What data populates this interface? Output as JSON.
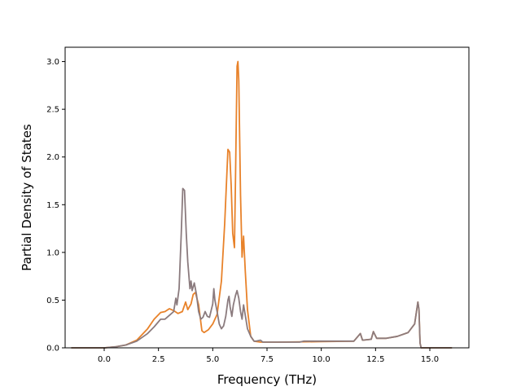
{
  "chart_data": {
    "type": "line",
    "title": "",
    "xlabel": "Frequency (THz)",
    "ylabel": "Partial Density of States",
    "xlim": [
      -1.8,
      16.8
    ],
    "ylim": [
      0.0,
      3.15
    ],
    "xticks": [
      0.0,
      2.5,
      5.0,
      7.5,
      10.0,
      12.5,
      15.0
    ],
    "xtick_labels": [
      "0.0",
      "2.5",
      "5.0",
      "7.5",
      "10.0",
      "12.5",
      "15.0"
    ],
    "yticks": [
      0.0,
      0.5,
      1.0,
      1.5,
      2.0,
      2.5,
      3.0
    ],
    "ytick_labels": [
      "0.0",
      "0.5",
      "1.0",
      "1.5",
      "2.0",
      "2.5",
      "3.0"
    ],
    "grid": false,
    "legend": "none",
    "series": [
      {
        "color": "#e8822a",
        "points": [
          [
            -1.5,
            0.0
          ],
          [
            0.0,
            0.0
          ],
          [
            0.5,
            0.01
          ],
          [
            1.0,
            0.03
          ],
          [
            1.5,
            0.08
          ],
          [
            2.0,
            0.2
          ],
          [
            2.3,
            0.3
          ],
          [
            2.6,
            0.37
          ],
          [
            2.8,
            0.38
          ],
          [
            3.0,
            0.41
          ],
          [
            3.2,
            0.39
          ],
          [
            3.4,
            0.36
          ],
          [
            3.6,
            0.38
          ],
          [
            3.75,
            0.48
          ],
          [
            3.85,
            0.4
          ],
          [
            4.0,
            0.46
          ],
          [
            4.1,
            0.56
          ],
          [
            4.2,
            0.58
          ],
          [
            4.35,
            0.45
          ],
          [
            4.5,
            0.18
          ],
          [
            4.6,
            0.16
          ],
          [
            4.8,
            0.19
          ],
          [
            5.0,
            0.25
          ],
          [
            5.2,
            0.35
          ],
          [
            5.4,
            0.7
          ],
          [
            5.55,
            1.3
          ],
          [
            5.7,
            2.08
          ],
          [
            5.78,
            2.05
          ],
          [
            5.85,
            1.7
          ],
          [
            5.92,
            1.2
          ],
          [
            6.0,
            1.05
          ],
          [
            6.05,
            1.8
          ],
          [
            6.12,
            2.95
          ],
          [
            6.16,
            3.0
          ],
          [
            6.2,
            2.8
          ],
          [
            6.28,
            1.6
          ],
          [
            6.35,
            0.95
          ],
          [
            6.42,
            1.17
          ],
          [
            6.5,
            0.8
          ],
          [
            6.6,
            0.4
          ],
          [
            6.75,
            0.12
          ],
          [
            6.9,
            0.07
          ],
          [
            7.2,
            0.06
          ],
          [
            8.0,
            0.06
          ],
          [
            10.0,
            0.065
          ],
          [
            11.5,
            0.07
          ],
          [
            11.8,
            0.15
          ],
          [
            11.9,
            0.08
          ],
          [
            12.3,
            0.09
          ],
          [
            12.4,
            0.17
          ],
          [
            12.55,
            0.1
          ],
          [
            13.0,
            0.1
          ],
          [
            13.5,
            0.12
          ],
          [
            14.0,
            0.16
          ],
          [
            14.3,
            0.25
          ],
          [
            14.45,
            0.48
          ],
          [
            14.5,
            0.4
          ],
          [
            14.55,
            0.05
          ],
          [
            14.6,
            0.0
          ],
          [
            16.0,
            0.0
          ]
        ]
      },
      {
        "color": "#8b7b7e",
        "points": [
          [
            -1.5,
            0.0
          ],
          [
            0.0,
            0.0
          ],
          [
            0.5,
            0.01
          ],
          [
            1.0,
            0.03
          ],
          [
            1.5,
            0.07
          ],
          [
            2.0,
            0.15
          ],
          [
            2.3,
            0.22
          ],
          [
            2.6,
            0.3
          ],
          [
            2.8,
            0.3
          ],
          [
            3.0,
            0.34
          ],
          [
            3.2,
            0.38
          ],
          [
            3.3,
            0.52
          ],
          [
            3.35,
            0.45
          ],
          [
            3.45,
            0.62
          ],
          [
            3.55,
            1.2
          ],
          [
            3.62,
            1.67
          ],
          [
            3.7,
            1.65
          ],
          [
            3.78,
            1.2
          ],
          [
            3.85,
            0.9
          ],
          [
            3.95,
            0.62
          ],
          [
            4.0,
            0.7
          ],
          [
            4.05,
            0.6
          ],
          [
            4.15,
            0.68
          ],
          [
            4.25,
            0.56
          ],
          [
            4.35,
            0.38
          ],
          [
            4.45,
            0.3
          ],
          [
            4.55,
            0.32
          ],
          [
            4.65,
            0.38
          ],
          [
            4.75,
            0.33
          ],
          [
            4.85,
            0.32
          ],
          [
            5.0,
            0.46
          ],
          [
            5.05,
            0.62
          ],
          [
            5.1,
            0.5
          ],
          [
            5.2,
            0.38
          ],
          [
            5.3,
            0.25
          ],
          [
            5.4,
            0.2
          ],
          [
            5.5,
            0.23
          ],
          [
            5.6,
            0.33
          ],
          [
            5.7,
            0.5
          ],
          [
            5.75,
            0.54
          ],
          [
            5.8,
            0.43
          ],
          [
            5.88,
            0.33
          ],
          [
            5.95,
            0.45
          ],
          [
            6.05,
            0.55
          ],
          [
            6.12,
            0.6
          ],
          [
            6.2,
            0.52
          ],
          [
            6.28,
            0.38
          ],
          [
            6.35,
            0.3
          ],
          [
            6.42,
            0.45
          ],
          [
            6.5,
            0.34
          ],
          [
            6.6,
            0.2
          ],
          [
            6.75,
            0.12
          ],
          [
            6.9,
            0.07
          ],
          [
            7.0,
            0.07
          ],
          [
            7.2,
            0.08
          ],
          [
            7.3,
            0.06
          ],
          [
            8.0,
            0.06
          ],
          [
            9.0,
            0.06
          ],
          [
            9.2,
            0.07
          ],
          [
            10.0,
            0.07
          ],
          [
            11.5,
            0.07
          ],
          [
            11.8,
            0.15
          ],
          [
            11.9,
            0.08
          ],
          [
            12.3,
            0.09
          ],
          [
            12.4,
            0.17
          ],
          [
            12.55,
            0.1
          ],
          [
            13.0,
            0.1
          ],
          [
            13.5,
            0.12
          ],
          [
            14.0,
            0.16
          ],
          [
            14.3,
            0.25
          ],
          [
            14.45,
            0.48
          ],
          [
            14.5,
            0.4
          ],
          [
            14.55,
            0.05
          ],
          [
            14.6,
            0.0
          ],
          [
            16.0,
            0.0
          ]
        ]
      }
    ]
  }
}
